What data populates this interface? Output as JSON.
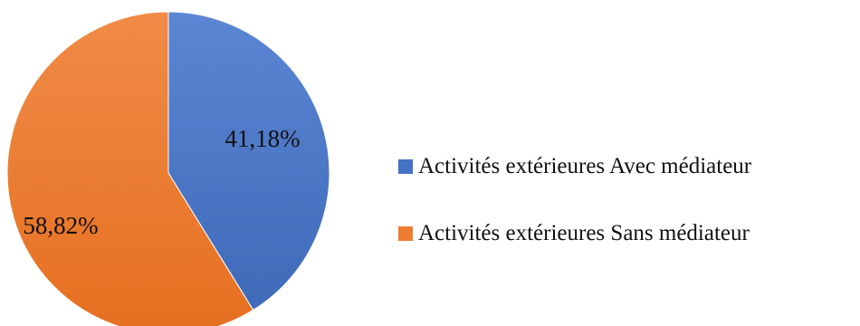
{
  "chart_data": {
    "type": "pie",
    "title": "",
    "slices": [
      {
        "name": "Activités extérieures Avec médiateur",
        "value": 41.18,
        "label": "41,18%",
        "color": "#4472C4"
      },
      {
        "name": "Activités extérieures Sans médiateur",
        "value": 58.82,
        "label": "58,82%",
        "color": "#ED7D31"
      }
    ],
    "start_angle": "top",
    "direction": "clockwise",
    "legend_position": "right"
  }
}
